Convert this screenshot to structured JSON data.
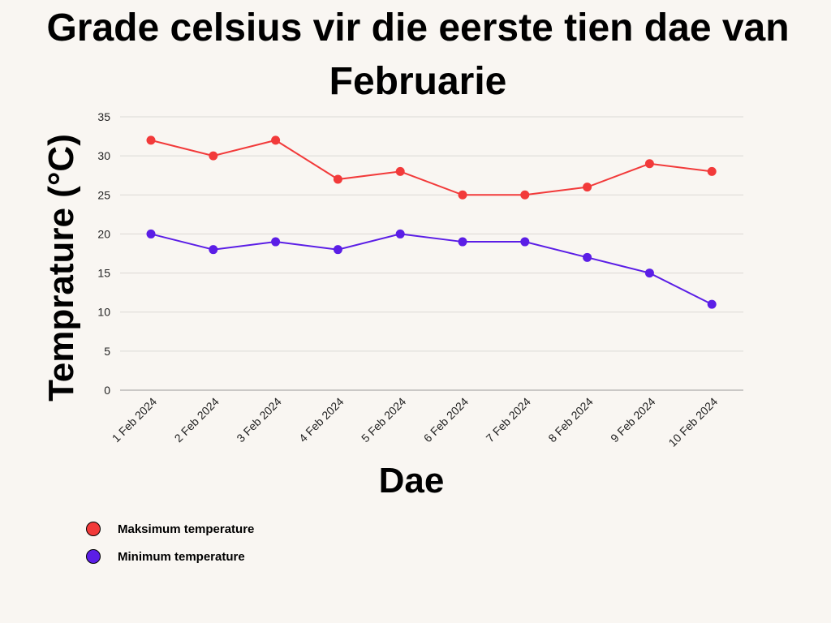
{
  "chart_data": {
    "type": "line",
    "title": "Grade celsius vir die eerste tien dae van Februarie",
    "xlabel": "Dae",
    "ylabel": "Temprature (°C)",
    "categories": [
      "1 Feb 2024",
      "2 Feb 2024",
      "3 Feb 2024",
      "4 Feb 2024",
      "5 Feb 2024",
      "6 Feb 2024",
      "7 Feb 2024",
      "8 Feb 2024",
      "9 Feb 2024",
      "10 Feb 2024"
    ],
    "ylim": [
      0,
      35
    ],
    "yticks": [
      0,
      5,
      10,
      15,
      20,
      25,
      30,
      35
    ],
    "grid": true,
    "legend_position": "bottom-left",
    "series": [
      {
        "name": "Maksimum temperature",
        "color": "#f23a3a",
        "values": [
          32,
          30,
          32,
          27,
          28,
          25,
          25,
          26,
          29,
          28
        ]
      },
      {
        "name": "Minimum temperature",
        "color": "#5b1ee6",
        "values": [
          20,
          18,
          19,
          18,
          20,
          19,
          19,
          17,
          15,
          11
        ]
      }
    ]
  }
}
